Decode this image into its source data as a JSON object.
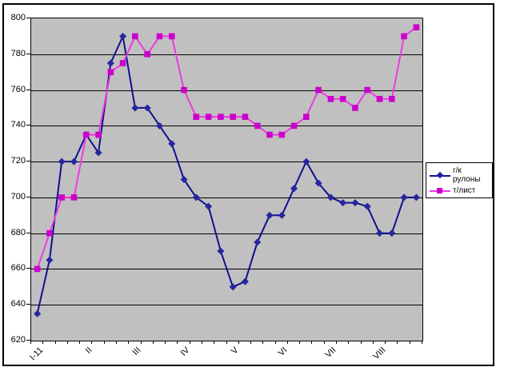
{
  "chart_data": {
    "type": "line",
    "title": "",
    "x_labels": [
      "I-11",
      "II",
      "III",
      "IV",
      "V",
      "VI",
      "VII",
      "VIII"
    ],
    "x_label_every": 4,
    "n_points": 32,
    "y_ticks": [
      620,
      640,
      660,
      680,
      700,
      720,
      740,
      760,
      780,
      800
    ],
    "ylim": [
      620,
      800
    ],
    "grid": "horizontal-only",
    "plot_bg": "#c0c0c0",
    "gridline_color": "#000000",
    "legend_position": "right",
    "series": [
      {
        "name": "г/к рулоны",
        "marker": "diamond",
        "line_color": "#101090",
        "marker_color": "#26269e",
        "values": [
          635,
          665,
          720,
          720,
          735,
          725,
          775,
          790,
          750,
          750,
          740,
          730,
          710,
          700,
          695,
          670,
          650,
          653,
          675,
          690,
          690,
          705,
          720,
          708,
          700,
          697,
          697,
          695,
          680,
          680,
          700,
          700
        ]
      },
      {
        "name": "т/лист",
        "marker": "square",
        "line_color": "#ee3ae0",
        "marker_color": "#cc00cc",
        "values": [
          660,
          680,
          700,
          700,
          735,
          735,
          770,
          775,
          790,
          780,
          790,
          790,
          760,
          745,
          745,
          745,
          745,
          745,
          740,
          735,
          735,
          740,
          745,
          760,
          755,
          755,
          750,
          760,
          755,
          755,
          790,
          795
        ]
      }
    ]
  }
}
